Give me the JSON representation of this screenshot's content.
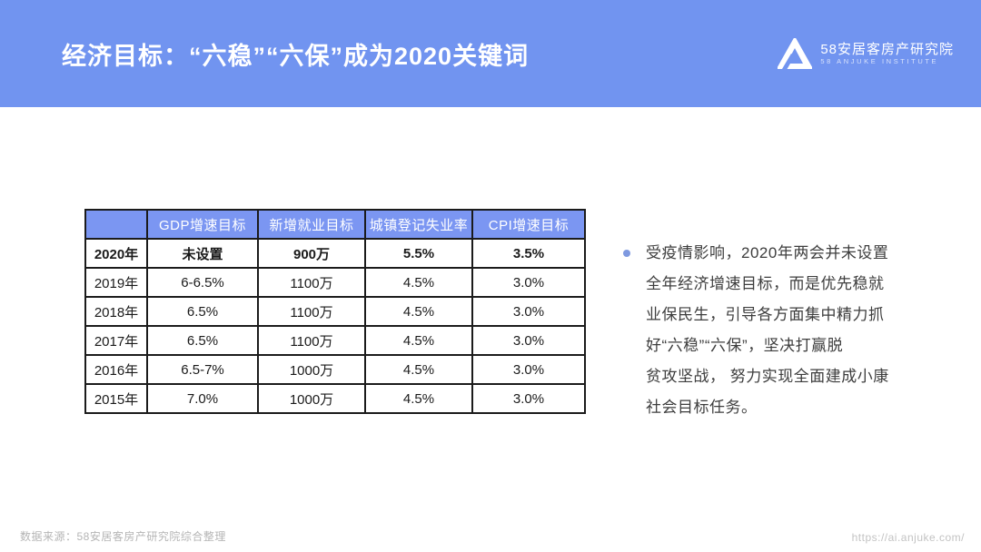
{
  "header": {
    "title": "经济目标：“六稳”“六保”成为2020关键词",
    "logo_cn": "58安居客房产研究院",
    "logo_en": "58 ANJUKE INSTITUTE"
  },
  "table": {
    "columns": [
      "",
      "GDP增速目标",
      "新增就业目标",
      "城镇登记失业率",
      "CPI增速目标"
    ],
    "rows": [
      {
        "year": "2020年",
        "values": [
          "未设置",
          "900万",
          "5.5%",
          "3.5%"
        ],
        "bold": true
      },
      {
        "year": "2019年",
        "values": [
          "6-6.5%",
          "1100万",
          "4.5%",
          "3.0%"
        ],
        "bold": false
      },
      {
        "year": "2018年",
        "values": [
          "6.5%",
          "1100万",
          "4.5%",
          "3.0%"
        ],
        "bold": false
      },
      {
        "year": "2017年",
        "values": [
          "6.5%",
          "1100万",
          "4.5%",
          "3.0%"
        ],
        "bold": false
      },
      {
        "year": "2016年",
        "values": [
          "6.5-7%",
          "1000万",
          "4.5%",
          "3.0%"
        ],
        "bold": false
      },
      {
        "year": "2015年",
        "values": [
          "7.0%",
          "1000万",
          "4.5%",
          "3.0%"
        ],
        "bold": false
      }
    ]
  },
  "bullet": {
    "lines": [
      "受疫情影响，2020年两会并未设置",
      "全年经济增速目标，而是优先稳就",
      "业保民生，引导各方面集中精力抓",
      "好“六稳”“六保”，坚决打赢脱",
      "贫攻坚战， 努力实现全面建成小康",
      "社会目标任务。"
    ]
  },
  "footer": {
    "source": "数据来源：58安居客房产研究院综合整理",
    "url": "https://ai.anjuke.com/"
  },
  "icons": {
    "logo": "anjuke-triangle-logo",
    "bullet": "dot-bullet"
  },
  "colors": {
    "banner_blue": "#7194f0",
    "table_header_blue": "#7b96f2",
    "table_border": "#1b1b1b",
    "body_text": "#3d3d3d",
    "bullet_dot": "#7e99e0",
    "footer_gray": "#b5b5b5"
  }
}
